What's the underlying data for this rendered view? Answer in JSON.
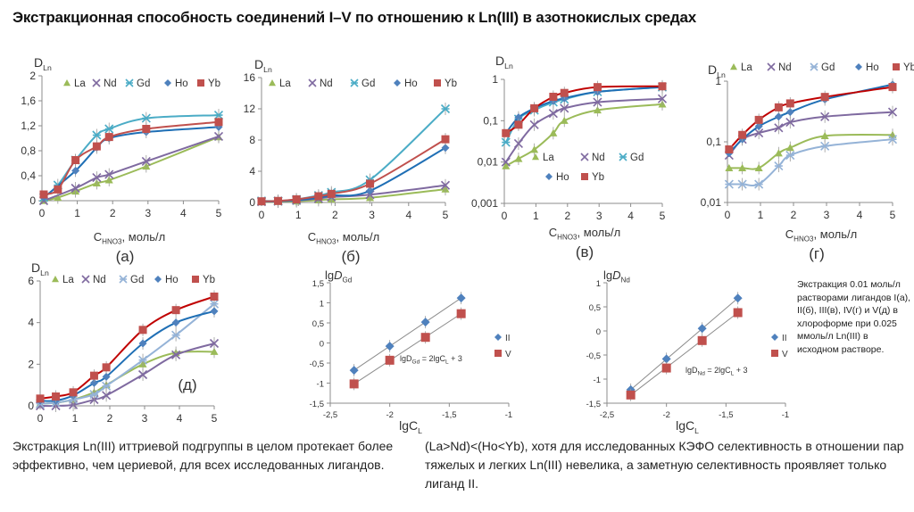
{
  "title": "Экстракционная способность соединений I–V по отношению к Ln(III) в азотнокислых средах",
  "note": "Экстракция 0.01 моль/л растворами лигандов I(а), II(б), III(в), IV(г) и V(д) в хлороформе при 0.025 ммоль/л Ln(III) в исходном растворе.",
  "bottom_left": "Экстракция Ln(III) иттриевой подгруппы в целом протекает более эффективно, чем цериевой, для всех исследованных лигандов.",
  "bottom_right": "(La>Nd)<(Ho<Yb), хотя для исследованных КЭФО селективность в отношении пар тяжелых и легких Ln(III) невелика, а заметную селективность проявляет только лиганд II.",
  "colors": {
    "La": "#9bbb59",
    "Nd": "#7f6aa0",
    "Gd": "#4bacc6",
    "Gd_light": "#95b3d7",
    "Ho": "#4f81bd",
    "Yb": "#c0504d",
    "line_Ho": "#1f6fb5",
    "line_Yb": "#c00000"
  },
  "chart_data": [
    {
      "id": "a",
      "type": "line",
      "panel_label": "(а)",
      "ylabel_main": "D",
      "ylabel_sub": "Ln",
      "xlabel_main": "C",
      "xlabel_sub": "HNO3",
      "xlabel_rest": ", моль/л",
      "xlim": [
        0,
        5
      ],
      "ylim": [
        0,
        2
      ],
      "yscale": "linear",
      "xticks": [
        0,
        1,
        2,
        3,
        4,
        5
      ],
      "xtick_labels": [
        "0",
        "1",
        "2",
        "3",
        "4",
        "5"
      ],
      "yticks": [
        0,
        0.4,
        0.8,
        1.2,
        1.6,
        2
      ],
      "ytick_labels": [
        "0",
        "0,4",
        "0,8",
        "1,2",
        "1,6",
        "2"
      ],
      "legend": "top",
      "series": [
        {
          "name": "La",
          "marker": "triangle",
          "x": [
            0.05,
            0.45,
            0.95,
            1.55,
            1.9,
            2.95,
            5
          ],
          "y": [
            0,
            0.05,
            0.15,
            0.28,
            0.33,
            0.55,
            1.02
          ]
        },
        {
          "name": "Nd",
          "marker": "x",
          "x": [
            0.05,
            0.95,
            1.55,
            1.9,
            2.95,
            5
          ],
          "y": [
            0,
            0.2,
            0.37,
            0.42,
            0.63,
            1.03
          ]
        },
        {
          "name": "Gd",
          "marker": "star",
          "x": [
            0.05,
            0.45,
            0.95,
            1.55,
            1.9,
            2.95,
            5
          ],
          "y": [
            0.05,
            0.25,
            0.65,
            1.05,
            1.15,
            1.32,
            1.37
          ]
        },
        {
          "name": "Ho",
          "marker": "diamond",
          "x": [
            0.05,
            0.95,
            1.55,
            1.9,
            2.95,
            5
          ],
          "y": [
            0.05,
            0.48,
            0.85,
            1.0,
            1.1,
            1.18
          ]
        },
        {
          "name": "Yb",
          "marker": "square",
          "x": [
            0.05,
            0.45,
            0.95,
            1.55,
            1.9,
            2.95,
            5
          ],
          "y": [
            0.1,
            0.18,
            0.65,
            0.87,
            1.02,
            1.15,
            1.26
          ]
        }
      ]
    },
    {
      "id": "b",
      "type": "line",
      "panel_label": "(б)",
      "ylabel_main": "D",
      "ylabel_sub": "Ln",
      "xlabel_main": "C",
      "xlabel_sub": "HNO3",
      "xlabel_rest": ", моль/л",
      "xlim": [
        0,
        5
      ],
      "ylim": [
        0,
        16
      ],
      "yscale": "linear",
      "xticks": [
        0,
        1,
        2,
        3,
        4,
        5
      ],
      "xtick_labels": [
        "0",
        "1",
        "2",
        "3",
        "4",
        "5"
      ],
      "yticks": [
        0,
        4,
        8,
        12,
        16
      ],
      "ytick_labels": [
        "0",
        "4",
        "8",
        "12",
        "16"
      ],
      "legend": "top",
      "series": [
        {
          "name": "La",
          "marker": "triangle",
          "x": [
            0,
            0.45,
            0.95,
            1.55,
            1.9,
            2.95,
            5
          ],
          "y": [
            0.05,
            0.1,
            0.15,
            0.3,
            0.4,
            0.6,
            1.7
          ]
        },
        {
          "name": "Nd",
          "marker": "x",
          "x": [
            0,
            0.45,
            0.95,
            1.55,
            1.9,
            2.95,
            5
          ],
          "y": [
            0.1,
            0.15,
            0.25,
            0.5,
            0.7,
            1.0,
            2.2
          ]
        },
        {
          "name": "Gd",
          "marker": "star",
          "x": [
            0,
            0.45,
            0.95,
            1.55,
            1.9,
            2.95,
            5
          ],
          "y": [
            0.2,
            0.2,
            0.4,
            0.9,
            1.3,
            2.9,
            12.0
          ]
        },
        {
          "name": "Ho",
          "marker": "diamond",
          "x": [
            0,
            0.45,
            0.95,
            1.55,
            1.9,
            2.95,
            5
          ],
          "y": [
            0.1,
            0.15,
            0.3,
            0.6,
            0.9,
            1.5,
            7.0
          ]
        },
        {
          "name": "Yb",
          "marker": "square",
          "x": [
            0,
            0.45,
            0.95,
            1.55,
            1.9,
            2.95,
            5
          ],
          "y": [
            0.15,
            0.2,
            0.4,
            0.8,
            1.1,
            2.4,
            8.1
          ]
        }
      ]
    },
    {
      "id": "v",
      "type": "line",
      "panel_label": "(в)",
      "ylabel_main": "D",
      "ylabel_sub": "Ln",
      "xlabel_main": "C",
      "xlabel_sub": "HNO3",
      "xlabel_rest": ", моль/л",
      "xlim": [
        0,
        5
      ],
      "ylim": [
        0.001,
        1
      ],
      "yscale": "log",
      "xticks": [
        0,
        1,
        2,
        3,
        4,
        5
      ],
      "xtick_labels": [
        "0",
        "1",
        "2",
        "3",
        "4",
        "5"
      ],
      "yticks": [
        0.001,
        0.01,
        0.1,
        1
      ],
      "ytick_labels": [
        "0,001",
        "0,01",
        "0,1",
        "1"
      ],
      "legend": "inside-center",
      "series": [
        {
          "name": "La",
          "marker": "triangle",
          "x": [
            0.05,
            0.45,
            0.95,
            1.55,
            1.9,
            2.95,
            5
          ],
          "y": [
            0.008,
            0.012,
            0.02,
            0.05,
            0.1,
            0.18,
            0.25
          ]
        },
        {
          "name": "Nd",
          "marker": "x",
          "x": [
            0.05,
            0.45,
            0.95,
            1.55,
            1.9,
            2.95,
            5
          ],
          "y": [
            0.01,
            0.028,
            0.08,
            0.15,
            0.2,
            0.28,
            0.34
          ]
        },
        {
          "name": "Gd",
          "marker": "star",
          "x": [
            0.05,
            0.45,
            0.95,
            1.55,
            1.9,
            2.95,
            5
          ],
          "y": [
            0.03,
            0.11,
            0.18,
            0.28,
            0.33,
            0.5,
            0.65
          ]
        },
        {
          "name": "Ho",
          "marker": "diamond",
          "x": [
            0.05,
            0.45,
            0.95,
            1.55,
            1.9,
            2.95,
            5
          ],
          "y": [
            0.05,
            0.12,
            0.2,
            0.3,
            0.35,
            0.5,
            0.65
          ]
        },
        {
          "name": "Yb",
          "marker": "square",
          "x": [
            0.05,
            0.45,
            0.95,
            1.55,
            1.9,
            2.95,
            5
          ],
          "y": [
            0.05,
            0.08,
            0.2,
            0.38,
            0.47,
            0.65,
            0.68
          ]
        }
      ]
    },
    {
      "id": "g",
      "type": "line",
      "panel_label": "(г)",
      "ylabel_main": "D",
      "ylabel_sub": "Ln",
      "xlabel_main": "C",
      "xlabel_sub": "HNO3",
      "xlabel_rest": ", моль/л",
      "xlim": [
        0,
        5
      ],
      "ylim": [
        0.01,
        1
      ],
      "yscale": "log",
      "xticks": [
        0,
        1,
        2,
        3,
        4,
        5
      ],
      "xtick_labels": [
        "0",
        "1",
        "2",
        "3",
        "4",
        "5"
      ],
      "yticks": [
        0.01,
        0.1,
        1
      ],
      "ytick_labels": [
        "0,01",
        "0,1",
        "1"
      ],
      "legend": "top",
      "series": [
        {
          "name": "La",
          "marker": "triangle",
          "x": [
            0.05,
            0.45,
            0.95,
            1.55,
            1.9,
            2.95,
            5
          ],
          "y": [
            0.037,
            0.037,
            0.037,
            0.065,
            0.08,
            0.125,
            0.13
          ]
        },
        {
          "name": "Nd",
          "marker": "x",
          "x": [
            0.05,
            0.45,
            0.95,
            1.55,
            1.9,
            2.95,
            5
          ],
          "y": [
            0.06,
            0.11,
            0.14,
            0.17,
            0.21,
            0.26,
            0.31
          ]
        },
        {
          "name": "Gd",
          "marker": "star",
          "x": [
            0.05,
            0.45,
            0.95,
            1.55,
            1.9,
            2.95,
            5
          ],
          "y": [
            0.02,
            0.02,
            0.02,
            0.04,
            0.06,
            0.085,
            0.11
          ]
        },
        {
          "name": "Ho",
          "marker": "diamond",
          "x": [
            0.05,
            0.45,
            0.95,
            1.55,
            1.9,
            2.95,
            5
          ],
          "y": [
            0.065,
            0.11,
            0.18,
            0.26,
            0.31,
            0.5,
            0.88
          ]
        },
        {
          "name": "Yb",
          "marker": "square",
          "x": [
            0.05,
            0.45,
            0.95,
            1.55,
            1.9,
            2.95,
            5
          ],
          "y": [
            0.075,
            0.13,
            0.23,
            0.37,
            0.43,
            0.55,
            0.8
          ]
        }
      ]
    },
    {
      "id": "d",
      "type": "line",
      "panel_label": "(д)",
      "ylabel_main": "D",
      "ylabel_sub": "Ln",
      "xlabel_main": "",
      "xlabel_sub": "",
      "xlabel_rest": "",
      "xlim": [
        0,
        5
      ],
      "ylim": [
        0,
        6
      ],
      "yscale": "linear",
      "xticks": [
        0,
        1,
        2,
        3,
        4,
        5
      ],
      "xtick_labels": [
        "0",
        "1",
        "2",
        "3",
        "4",
        "5"
      ],
      "yticks": [
        0,
        2,
        4,
        6
      ],
      "ytick_labels": [
        "0",
        "2",
        "4",
        "6"
      ],
      "legend": "top",
      "series": [
        {
          "name": "La",
          "marker": "triangle",
          "x": [
            0,
            0.45,
            0.95,
            1.55,
            1.9,
            2.95,
            3.9,
            5
          ],
          "y": [
            0.1,
            0.15,
            0.3,
            0.65,
            1.0,
            2.0,
            2.55,
            2.6
          ]
        },
        {
          "name": "Nd",
          "marker": "x",
          "x": [
            0,
            0.45,
            0.95,
            1.55,
            1.9,
            2.95,
            3.9,
            5
          ],
          "y": [
            0.0,
            0.0,
            0.05,
            0.3,
            0.5,
            1.5,
            2.45,
            3.0
          ]
        },
        {
          "name": "Gd",
          "marker": "star",
          "x": [
            0,
            0.45,
            0.95,
            1.55,
            1.9,
            2.95,
            3.9,
            5
          ],
          "y": [
            0.1,
            0.15,
            0.3,
            0.55,
            0.95,
            2.2,
            3.4,
            4.9
          ]
        },
        {
          "name": "Ho",
          "marker": "diamond",
          "x": [
            0,
            0.45,
            0.95,
            1.55,
            1.9,
            2.95,
            3.9,
            5
          ],
          "y": [
            0.25,
            0.25,
            0.5,
            1.1,
            1.4,
            3.0,
            4.0,
            4.55
          ]
        },
        {
          "name": "Yb",
          "marker": "square",
          "x": [
            0,
            0.45,
            0.95,
            1.55,
            1.9,
            2.95,
            3.9,
            5
          ],
          "y": [
            0.35,
            0.45,
            0.65,
            1.45,
            1.85,
            3.65,
            4.6,
            5.25
          ]
        }
      ]
    },
    {
      "id": "lgGd",
      "type": "scatter",
      "ylabel_main": "lgD",
      "ylabel_sub": "Gd",
      "xlabel_main": "lgC",
      "xlabel_sub": "L",
      "xlabel_rest": "",
      "equation": {
        "lhs": "lgD",
        "lhs_sub": "Gd",
        "mid": " = 2lgC",
        "mid_sub": "L",
        "rhs": " + 3"
      },
      "xlim": [
        -2.5,
        -1
      ],
      "ylim": [
        -1.5,
        1.5
      ],
      "yscale": "linear",
      "xticks": [
        -2.5,
        -2,
        -1.5,
        -1
      ],
      "xtick_labels": [
        "-2,5",
        "-2",
        "-1,5",
        "-1"
      ],
      "yticks": [
        -1.5,
        -1,
        -0.5,
        0,
        0.5,
        1,
        1.5
      ],
      "ytick_labels": [
        "-1,5",
        "-1",
        "-0,5",
        "0",
        "0,5",
        "1",
        "1,5"
      ],
      "legend": "right",
      "series": [
        {
          "name": "II",
          "marker": "diamond",
          "x": [
            -2.3,
            -2.0,
            -1.7,
            -1.4
          ],
          "y": [
            -0.68,
            -0.08,
            0.52,
            1.12
          ]
        },
        {
          "name": "V",
          "marker": "square",
          "x": [
            -2.3,
            -2.0,
            -1.7,
            -1.4
          ],
          "y": [
            -1.02,
            -0.43,
            0.14,
            0.73
          ]
        }
      ]
    },
    {
      "id": "lgNd",
      "type": "scatter",
      "ylabel_main": "lgD",
      "ylabel_sub": "Nd",
      "xlabel_main": "lgC",
      "xlabel_sub": "L",
      "xlabel_rest": "",
      "equation": {
        "lhs": "lgD",
        "lhs_sub": "Nd",
        "mid": " = 2lgC",
        "mid_sub": "L",
        "rhs": " + 3"
      },
      "xlim": [
        -2.5,
        -1
      ],
      "ylim": [
        -1.5,
        1
      ],
      "yscale": "linear",
      "xticks": [
        -2.5,
        -2,
        -1.5,
        -1
      ],
      "xtick_labels": [
        "-2,5",
        "-2",
        "-1,5",
        "-1"
      ],
      "yticks": [
        -1.5,
        -1,
        -0.5,
        0,
        0.5,
        1
      ],
      "ytick_labels": [
        "-1,5",
        "-1",
        "-0,5",
        "0",
        "0,5",
        "1"
      ],
      "legend": "right",
      "series": [
        {
          "name": "II",
          "marker": "diamond",
          "x": [
            -2.3,
            -2.0,
            -1.7,
            -1.4
          ],
          "y": [
            -1.22,
            -0.58,
            0.05,
            0.68
          ]
        },
        {
          "name": "V",
          "marker": "square",
          "x": [
            -2.3,
            -2.0,
            -1.7,
            -1.4
          ],
          "y": [
            -1.33,
            -0.77,
            -0.2,
            0.38
          ]
        }
      ]
    }
  ]
}
